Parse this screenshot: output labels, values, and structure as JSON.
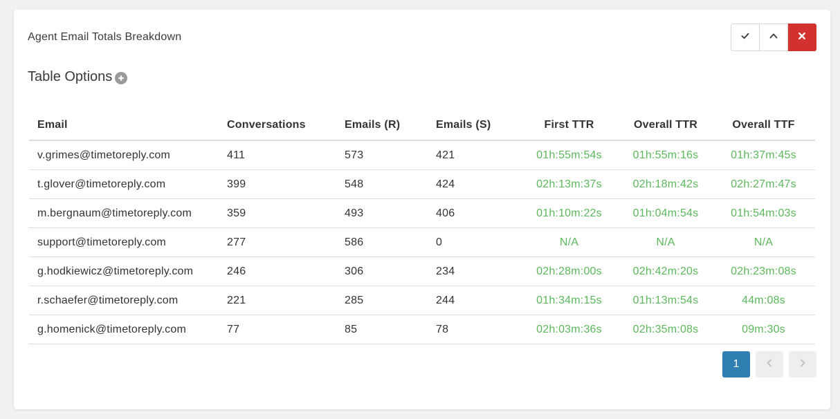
{
  "panel": {
    "title": "Agent Email Totals Breakdown",
    "controls": {
      "collapse_icon": "check-icon",
      "expand_icon": "chevron-up-icon",
      "close_icon": "close-icon",
      "close_color": "#d2322d"
    }
  },
  "table_options": {
    "label": "Table Options",
    "toggle_icon": "plus-circle-icon"
  },
  "table": {
    "headers": [
      "Email",
      "Conversations",
      "Emails (R)",
      "Emails (S)",
      "First TTR",
      "Overall TTR",
      "Overall TTF"
    ],
    "rows": [
      [
        "v.grimes@timetoreply.com",
        "411",
        "573",
        "421",
        "01h:55m:54s",
        "01h:55m:16s",
        "01h:37m:45s"
      ],
      [
        "t.glover@timetoreply.com",
        "399",
        "548",
        "424",
        "02h:13m:37s",
        "02h:18m:42s",
        "02h:27m:47s"
      ],
      [
        "m.bergnaum@timetoreply.com",
        "359",
        "493",
        "406",
        "01h:10m:22s",
        "01h:04m:54s",
        "01h:54m:03s"
      ],
      [
        "support@timetoreply.com",
        "277",
        "586",
        "0",
        "N/A",
        "N/A",
        "N/A"
      ],
      [
        "g.hodkiewicz@timetoreply.com",
        "246",
        "306",
        "234",
        "02h:28m:00s",
        "02h:42m:20s",
        "02h:23m:08s"
      ],
      [
        "r.schaefer@timetoreply.com",
        "221",
        "285",
        "244",
        "01h:34m:15s",
        "01h:13m:54s",
        "44m:08s"
      ],
      [
        "g.homenick@timetoreply.com",
        "77",
        "85",
        "78",
        "02h:03m:36s",
        "02h:35m:08s",
        "09m:30s"
      ]
    ],
    "time_color": "#5cb85c"
  },
  "pagination": {
    "current_page": "1",
    "prev_icon": "chevron-left-icon",
    "next_icon": "chevron-right-icon",
    "active_color": "#2f7fb2"
  }
}
